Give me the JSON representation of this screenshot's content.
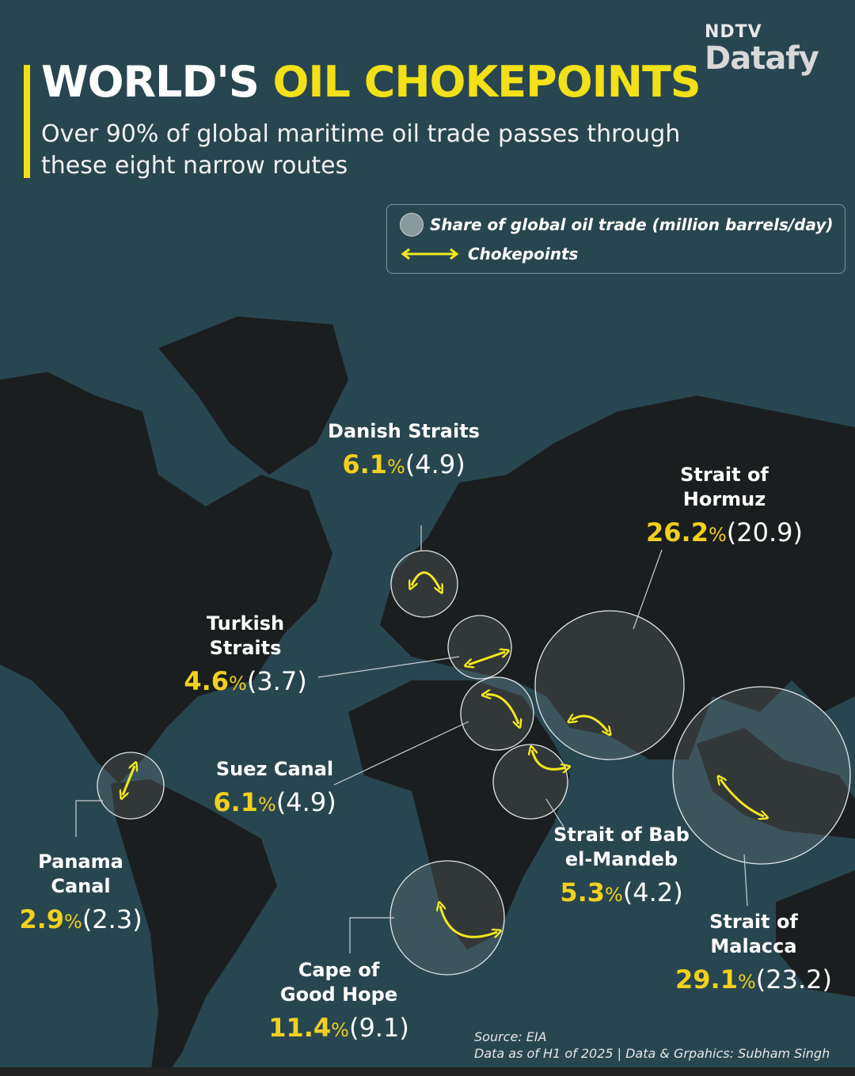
{
  "logo": {
    "brand": "NDTV",
    "product": "Datafy"
  },
  "header": {
    "title_part1": "WORLD'S ",
    "title_part2": "OIL CHOKEPOINTS",
    "subtitle": "Over 90% of global maritime oil trade passes through these eight narrow routes"
  },
  "legend": {
    "circle_label": "Share of global oil trade (million barrels/day)",
    "arrow_label": "Chokepoints"
  },
  "colors": {
    "background": "#284650",
    "land": "#1b1e1f",
    "accent": "#f2e018",
    "arrow": "#f2e81e"
  },
  "chokepoints": [
    {
      "name": "Danish Straits",
      "share": "6.1",
      "volume": "(4.9)"
    },
    {
      "name": "Strait of Hormuz",
      "share": "26.2",
      "volume": "(20.9)"
    },
    {
      "name": "Turkish Straits",
      "share": "4.6",
      "volume": "(3.7)"
    },
    {
      "name": "Suez Canal",
      "share": "6.1",
      "volume": "(4.9)"
    },
    {
      "name": "Panama Canal",
      "share": "2.9",
      "volume": "(2.3)"
    },
    {
      "name": "Strait of Bab el-Mandeb",
      "share": "5.3",
      "volume": "(4.2)"
    },
    {
      "name": "Strait of Malacca",
      "share": "29.1",
      "volume": "(23.2)"
    },
    {
      "name": "Cape of Good Hope",
      "share": "11.4",
      "volume": "(9.1)"
    }
  ],
  "chokepoint_label_lines": [
    [
      "Danish Straits"
    ],
    [
      "Strait of",
      "Hormuz"
    ],
    [
      "Turkish",
      "Straits"
    ],
    [
      "Suez Canal"
    ],
    [
      "Panama",
      "Canal"
    ],
    [
      "Strait of Bab",
      "el-Mandeb"
    ],
    [
      "Strait of",
      "Malacca"
    ],
    [
      "Cape of",
      "Good Hope"
    ]
  ],
  "percent_sign": "%",
  "footer": {
    "source": "Source: EIA",
    "credit": "Data as of H1 of 2025 | Data & Grpahics: Subham Singh"
  }
}
